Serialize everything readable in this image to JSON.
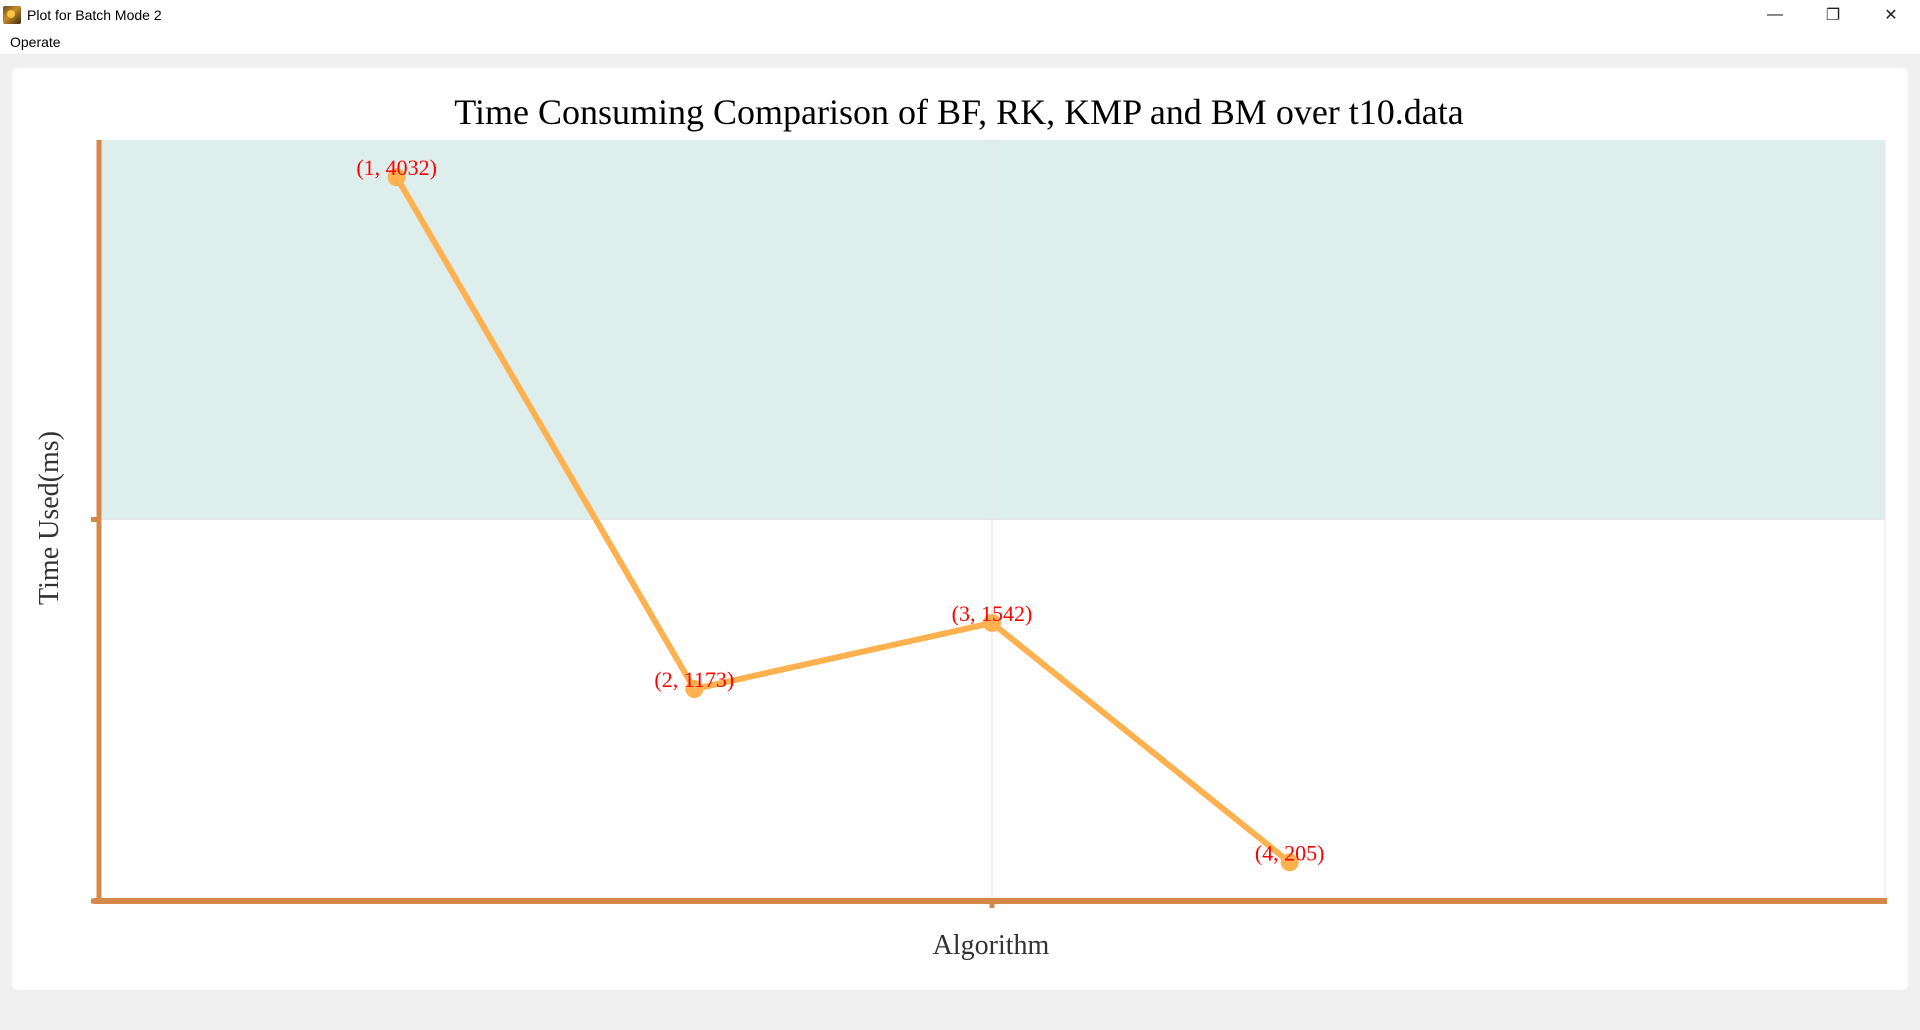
{
  "window": {
    "title": "Plot for Batch Mode 2",
    "controls": {
      "minimize": "—",
      "restore": "❐",
      "close": "✕"
    }
  },
  "menu": {
    "items": [
      {
        "label": "Operate"
      }
    ]
  },
  "chart_data": {
    "type": "line",
    "title": "Time Consuming Comparison of BF, RK, KMP and BM over t10.data",
    "xlabel": "Algorithm",
    "ylabel": "Time Used(ms)",
    "x": [
      1,
      2,
      3,
      4
    ],
    "series": [
      {
        "values": [
          4032,
          1173,
          1542,
          205
        ],
        "point_labels": [
          "(1, 4032)",
          "(2, 1173)",
          "(3, 1542)",
          "(4, 205)"
        ]
      }
    ],
    "xlim": [
      0,
      6
    ],
    "ylim": [
      0,
      4240
    ],
    "grid": true,
    "colors": {
      "line": "#ffb150",
      "label": "#ff0000",
      "axis": "#d4884a",
      "band": "#ddeeed",
      "grid": "#e6e6e6"
    }
  }
}
